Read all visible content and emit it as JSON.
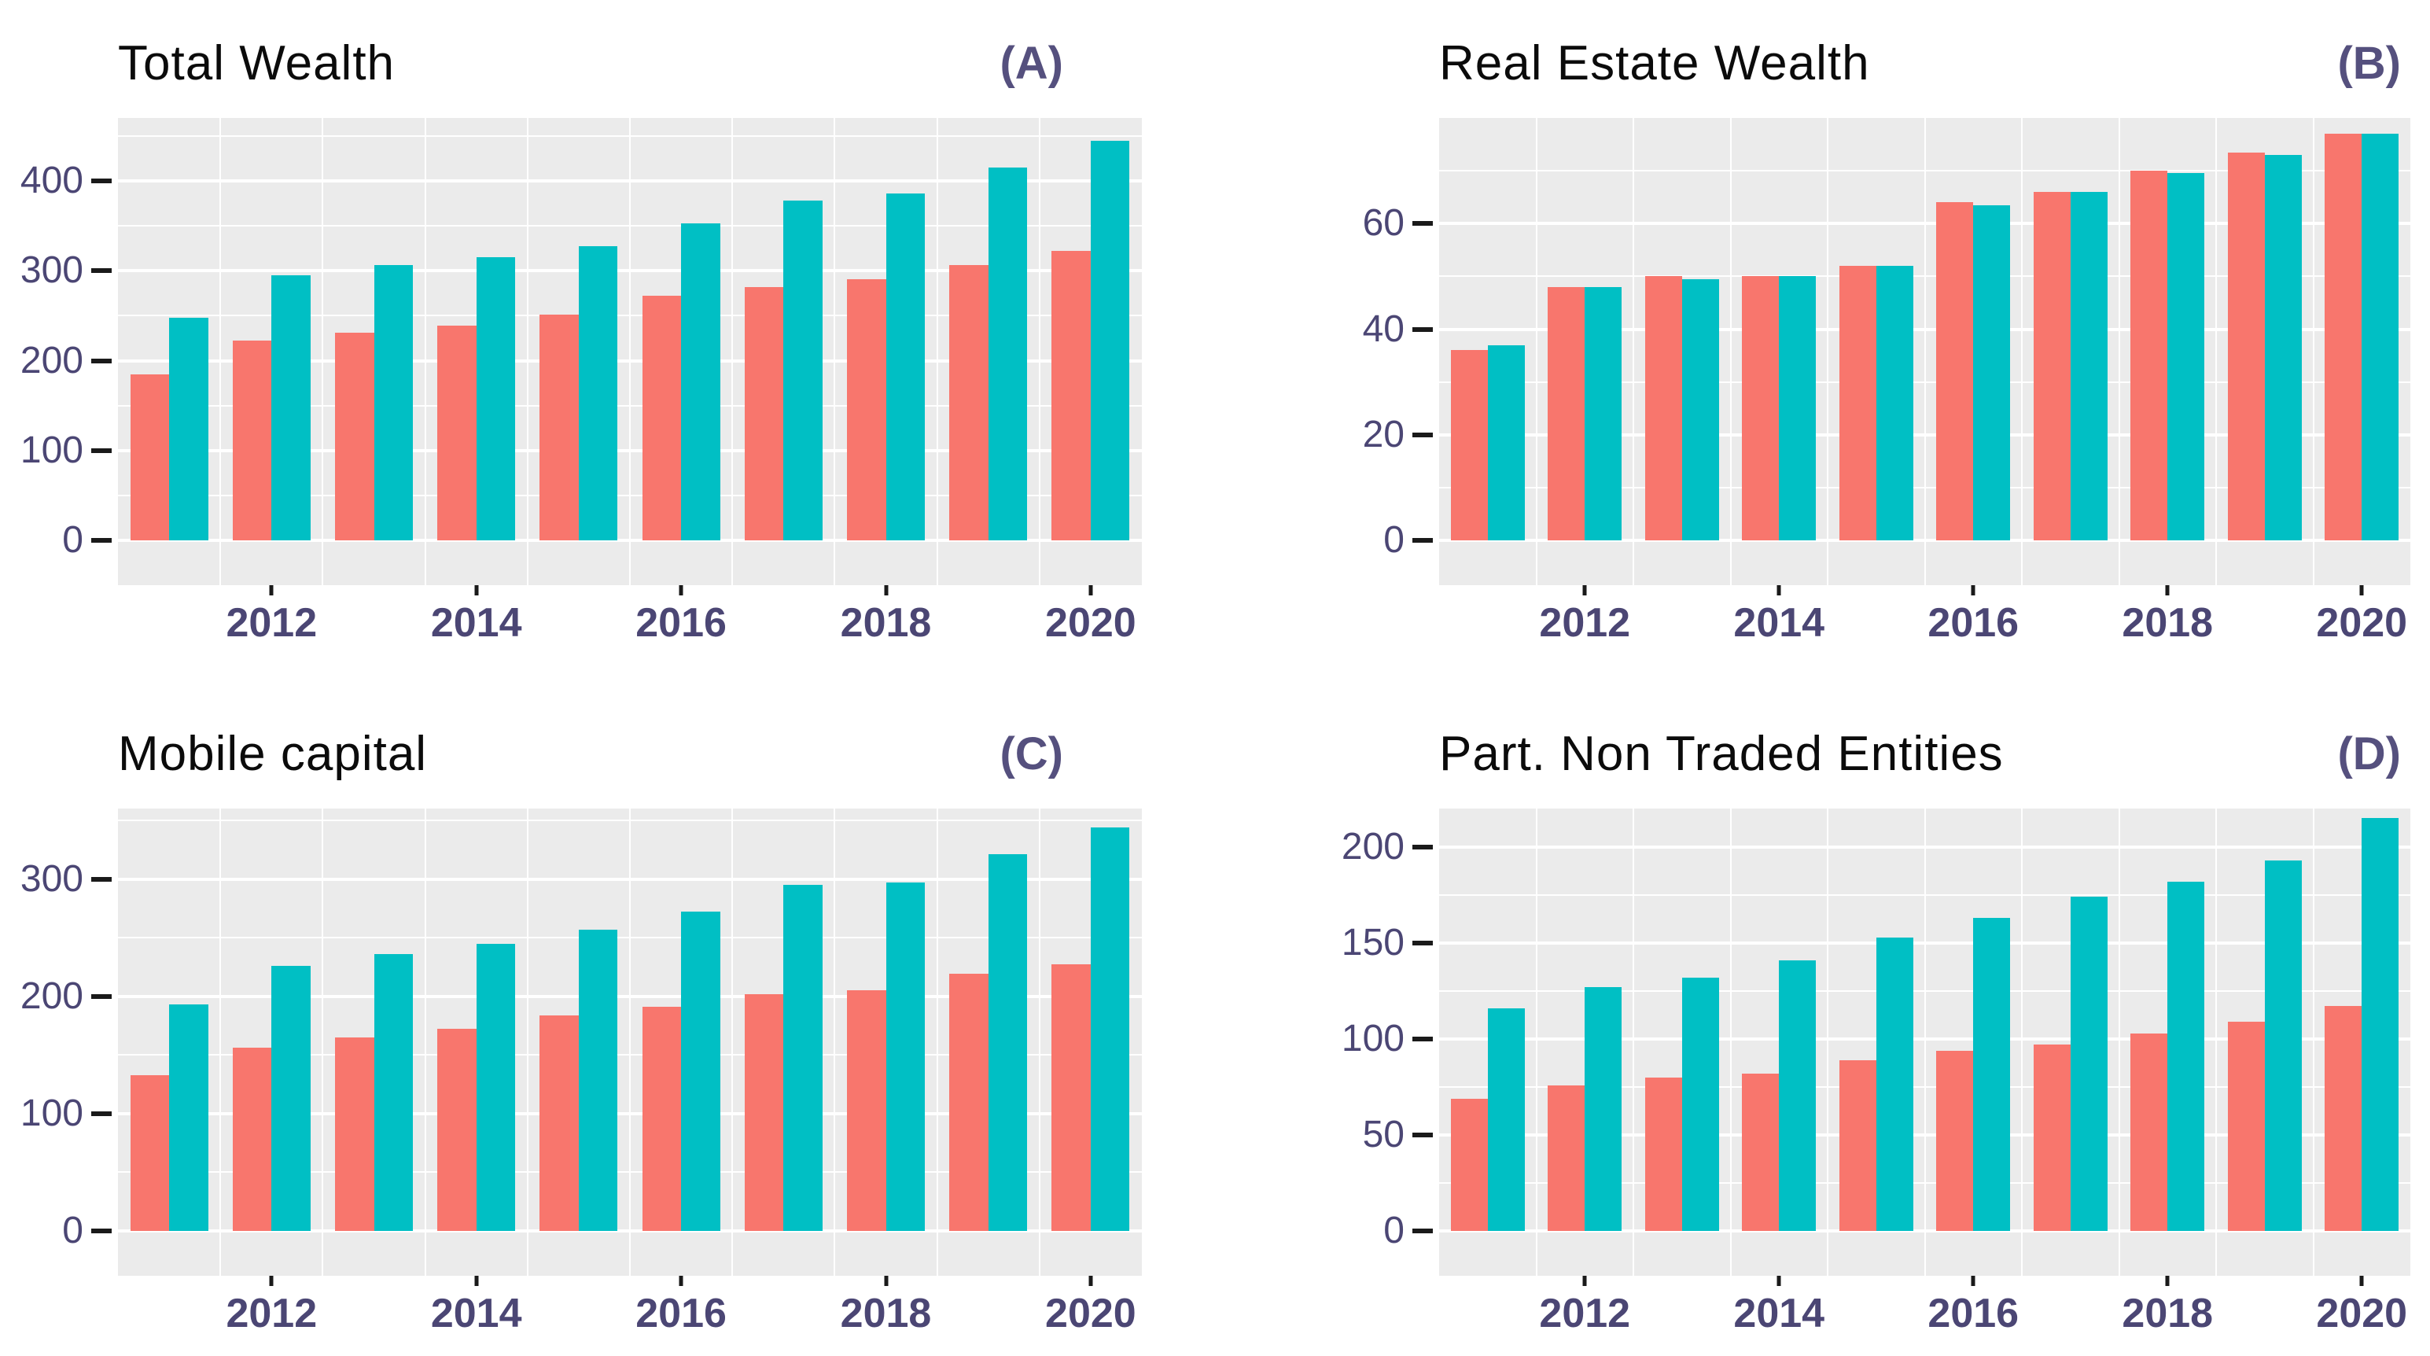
{
  "colors": {
    "series_red": "#F8766D",
    "series_teal": "#00BFC4",
    "panel_bg": "#EBEBEB",
    "grid": "#FFFFFF",
    "axis_text": "#4B4674",
    "tick_mark": "#1A1A1A",
    "title": "#0B0B0B",
    "panel_label": "#55507E"
  },
  "chart_data": [
    {
      "type": "bar",
      "panel": "A",
      "title": "Total Wealth",
      "label": "(A)",
      "categories": [
        "2011",
        "2012",
        "2013",
        "2014",
        "2015",
        "2016",
        "2017",
        "2018",
        "2019",
        "2020"
      ],
      "series": [
        {
          "name": "series_red",
          "values": [
            185,
            222,
            231,
            239,
            251,
            272,
            282,
            291,
            306,
            322
          ]
        },
        {
          "name": "series_teal",
          "values": [
            248,
            295,
            306,
            315,
            327,
            353,
            378,
            386,
            415,
            445
          ]
        }
      ],
      "ylabel": "",
      "xlabel": "",
      "y_ticks": [
        0,
        100,
        200,
        300,
        400
      ],
      "y_minor_ticks": [
        50,
        150,
        250,
        350,
        450
      ],
      "ylim": [
        0,
        470
      ],
      "x_tick_labels": [
        "2012",
        "2014",
        "2016",
        "2018",
        "2020"
      ],
      "x_tick_indices": [
        1,
        3,
        5,
        7,
        9
      ],
      "grid": "on",
      "legend": "none"
    },
    {
      "type": "bar",
      "panel": "B",
      "title": "Real Estate Wealth",
      "label": "(B)",
      "categories": [
        "2011",
        "2012",
        "2013",
        "2014",
        "2015",
        "2016",
        "2017",
        "2018",
        "2019",
        "2020"
      ],
      "series": [
        {
          "name": "series_red",
          "values": [
            36,
            48,
            50,
            50,
            52,
            64,
            66,
            70,
            73.5,
            77
          ]
        },
        {
          "name": "series_teal",
          "values": [
            37,
            48,
            49.5,
            50,
            52,
            63.5,
            66,
            69.5,
            73,
            77
          ]
        }
      ],
      "ylabel": "",
      "xlabel": "",
      "y_ticks": [
        0,
        20,
        40,
        60
      ],
      "y_minor_ticks": [
        10,
        30,
        50,
        70
      ],
      "ylim": [
        0,
        80
      ],
      "x_tick_labels": [
        "2012",
        "2014",
        "2016",
        "2018",
        "2020"
      ],
      "x_tick_indices": [
        1,
        3,
        5,
        7,
        9
      ],
      "grid": "on",
      "legend": "none"
    },
    {
      "type": "bar",
      "panel": "C",
      "title": "Mobile capital",
      "label": "(C)",
      "categories": [
        "2011",
        "2012",
        "2013",
        "2014",
        "2015",
        "2016",
        "2017",
        "2018",
        "2019",
        "2020"
      ],
      "series": [
        {
          "name": "series_red",
          "values": [
            133,
            156,
            165,
            172,
            184,
            191,
            202,
            205,
            219,
            227
          ]
        },
        {
          "name": "series_teal",
          "values": [
            193,
            226,
            236,
            245,
            257,
            272,
            295,
            297,
            321,
            344
          ]
        }
      ],
      "ylabel": "",
      "xlabel": "",
      "y_ticks": [
        0,
        100,
        200,
        300
      ],
      "y_minor_ticks": [
        50,
        150,
        250,
        350
      ],
      "ylim": [
        0,
        360
      ],
      "x_tick_labels": [
        "2012",
        "2014",
        "2016",
        "2018",
        "2020"
      ],
      "x_tick_indices": [
        1,
        3,
        5,
        7,
        9
      ],
      "grid": "on",
      "legend": "none"
    },
    {
      "type": "bar",
      "panel": "D",
      "title": "Part. Non Traded Entities",
      "label": "(D)",
      "categories": [
        "2011",
        "2012",
        "2013",
        "2014",
        "2015",
        "2016",
        "2017",
        "2018",
        "2019",
        "2020"
      ],
      "series": [
        {
          "name": "series_red",
          "values": [
            69,
            76,
            80,
            82,
            89,
            94,
            97,
            103,
            109,
            117
          ]
        },
        {
          "name": "series_teal",
          "values": [
            116,
            127,
            132,
            141,
            153,
            163,
            174,
            182,
            193,
            215
          ]
        }
      ],
      "ylabel": "",
      "xlabel": "",
      "y_ticks": [
        0,
        50,
        100,
        150,
        200
      ],
      "y_minor_ticks": [
        25,
        75,
        125,
        175
      ],
      "ylim": [
        0,
        220
      ],
      "x_tick_labels": [
        "2012",
        "2014",
        "2016",
        "2018",
        "2020"
      ],
      "x_tick_indices": [
        1,
        3,
        5,
        7,
        9
      ],
      "grid": "on",
      "legend": "none"
    }
  ]
}
